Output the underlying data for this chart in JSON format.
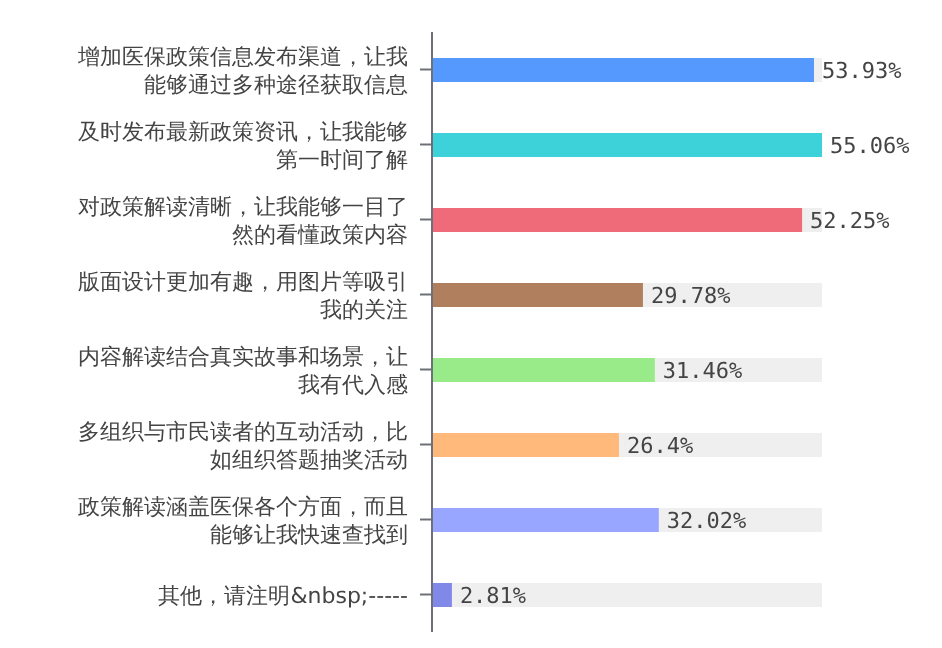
{
  "chart_data": {
    "type": "bar",
    "orientation": "horizontal",
    "categories": [
      "增加医保政策信息发布渠道，让我能够通过多种途径获取信息",
      "及时发布最新政策资讯，让我能够第一时间了解",
      "对政策解读清晰，让我能够一目了然的看懂政策内容",
      "版面设计更加有趣，用图片等吸引我的关注",
      "内容解读结合真实故事和场景，让我有代入感",
      "多组织与市民读者的互动活动，比如组织答题抽奖活动",
      "政策解读涵盖医保各个方面，而且能够让我快速查找到",
      "其他，请注明&nbsp;-----"
    ],
    "values": [
      53.93,
      55.06,
      52.25,
      29.78,
      31.46,
      26.4,
      32.02,
      2.81
    ],
    "value_labels": [
      "53.93%",
      "55.06%",
      "52.25%",
      "29.78%",
      "31.46%",
      "26.4%",
      "32.02%",
      "2.81%"
    ],
    "colors": [
      "#5599ff",
      "#3dd1d9",
      "#f06b7a",
      "#b07f5d",
      "#99ea88",
      "#ffb97a",
      "#99a6ff",
      "#8088e8"
    ]
  }
}
